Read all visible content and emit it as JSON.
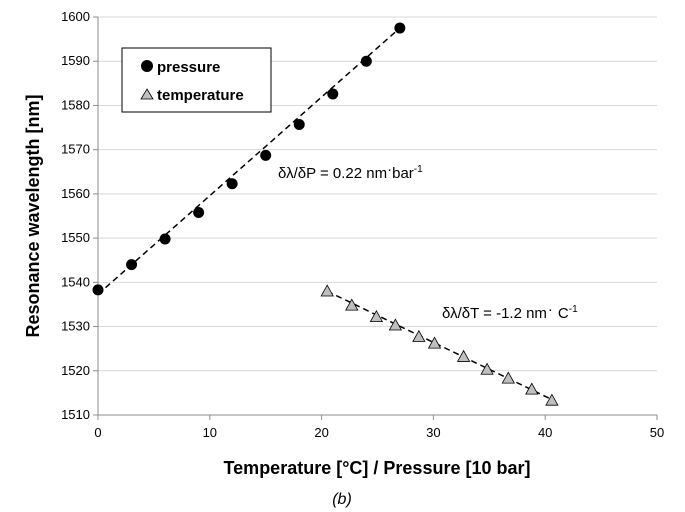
{
  "chart_data": {
    "type": "scatter",
    "xlabel": "Temperature [°C] / Pressure [10 bar]",
    "ylabel": "Resonance wavelength [nm]",
    "xlim": [
      0,
      50
    ],
    "ylim": [
      1510,
      1600
    ],
    "xticks": [
      0,
      10,
      20,
      30,
      40,
      50
    ],
    "yticks": [
      1510,
      1520,
      1530,
      1540,
      1550,
      1560,
      1570,
      1580,
      1590,
      1600
    ],
    "grid": "horizontal",
    "legend_position": "top-left",
    "caption": "(b)",
    "series": [
      {
        "name": "pressure",
        "marker": "circle",
        "color": "#000000",
        "x": [
          0,
          3,
          6,
          9,
          12,
          15,
          18,
          21,
          24,
          27
        ],
        "y": [
          1538.3,
          1544.0,
          1549.8,
          1555.8,
          1562.3,
          1568.7,
          1575.7,
          1582.6,
          1590.0,
          1597.5
        ],
        "fit": {
          "x": [
            0,
            27
          ],
          "y": [
            1537.3,
            1597.5
          ]
        },
        "annotation": {
          "main": "δλ/δP = 0.22 nm",
          "dot": "·",
          "unit": "bar",
          "exp": "-1"
        }
      },
      {
        "name": "temperature",
        "marker": "triangle",
        "color": "#bfbfbf",
        "x": [
          20.5,
          22.7,
          24.9,
          26.6,
          28.7,
          30.1,
          32.7,
          34.8,
          36.7,
          38.8,
          40.6
        ],
        "y": [
          1538.0,
          1534.8,
          1532.2,
          1530.3,
          1527.7,
          1526.2,
          1523.2,
          1520.3,
          1518.3,
          1515.8,
          1513.3
        ],
        "fit": {
          "x": [
            20.5,
            40.6
          ],
          "y": [
            1538.0,
            1513.5
          ]
        },
        "annotation": {
          "main": "δλ/δT = -1.2 nm",
          "dot": "·",
          "unit": "C",
          "exp": "-1"
        }
      }
    ]
  }
}
